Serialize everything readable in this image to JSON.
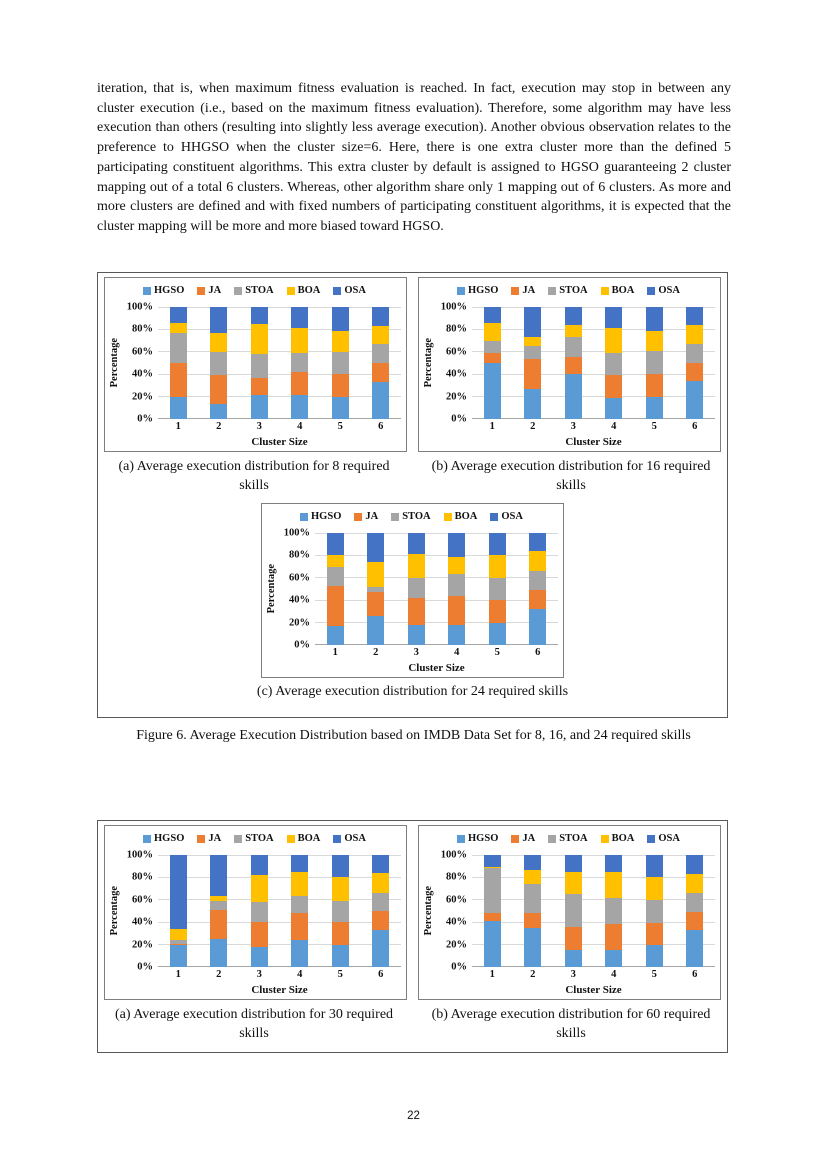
{
  "page": {
    "paragraph": "iteration, that is, when maximum fitness evaluation is reached. In fact, execution may stop in between any cluster execution (i.e., based on the maximum fitness evaluation). Therefore, some algorithm may have less execution than others (resulting into slightly less average execution). Another obvious observation relates to the preference to HHGSO when the cluster size=6. Here, there is one extra cluster more than the defined 5 participating constituent algorithms. This extra cluster by default is assigned to HGSO guaranteeing 2 cluster mapping out of a total 6 clusters. Whereas, other algorithm share only 1 mapping out of 6 clusters. As more and more clusters are defined and with fixed numbers of participating constituent algorithms, it is expected that the cluster mapping will be more and more biased toward HGSO.",
    "page_number": "22"
  },
  "figure6": {
    "caption_a": "(a) Average execution distribution for 8 required skills",
    "caption_b": "(b) Average execution distribution for 16 required skills",
    "caption_c": "(c) Average execution distribution for 24 required skills",
    "caption_main": "Figure 6. Average Execution Distribution based on IMDB Data Set for 8, 16, and 24 required skills"
  },
  "figure7": {
    "caption_a": "(a) Average execution distribution for 30 required skills",
    "caption_b": "(b) Average execution distribution for 60 required skills"
  },
  "colors": {
    "HGSO": "#5B9BD5",
    "JA": "#ED7D31",
    "STOA": "#A5A5A5",
    "BOA": "#FFC000",
    "OSA": "#4472C4",
    "gridline": "#D9D9D9",
    "axis": "#A6A6A6"
  },
  "chart_data": [
    {
      "type": "bar",
      "stacked": true,
      "title": "Average execution distribution for 8 required skills",
      "categories": [
        "1",
        "2",
        "3",
        "4",
        "5",
        "6"
      ],
      "series": [
        {
          "name": "HGSO",
          "color": "#5B9BD5",
          "values": [
            20,
            13,
            21,
            21,
            20,
            33
          ]
        },
        {
          "name": "JA",
          "color": "#ED7D31",
          "values": [
            30,
            26,
            16,
            21,
            20,
            17
          ]
        },
        {
          "name": "STOA",
          "color": "#A5A5A5",
          "values": [
            27,
            21,
            21,
            17,
            20,
            17
          ]
        },
        {
          "name": "BOA",
          "color": "#FFC000",
          "values": [
            9,
            17,
            27,
            22,
            19,
            16
          ]
        },
        {
          "name": "OSA",
          "color": "#4472C4",
          "values": [
            14,
            23,
            15,
            19,
            21,
            17
          ]
        }
      ],
      "xlabel": "Cluster Size",
      "ylabel": "Percentage",
      "yticks": [
        "0%",
        "20%",
        "40%",
        "60%",
        "80%",
        "100%"
      ],
      "ylim": [
        0,
        100
      ],
      "grid": true,
      "legend_position": "top"
    },
    {
      "type": "bar",
      "stacked": true,
      "title": "Average execution distribution for 16 required skills",
      "categories": [
        "1",
        "2",
        "3",
        "4",
        "5",
        "6"
      ],
      "series": [
        {
          "name": "HGSO",
          "color": "#5B9BD5",
          "values": [
            50,
            27,
            40,
            19,
            20,
            34
          ]
        },
        {
          "name": "JA",
          "color": "#ED7D31",
          "values": [
            9,
            27,
            15,
            20,
            20,
            16
          ]
        },
        {
          "name": "STOA",
          "color": "#A5A5A5",
          "values": [
            11,
            11,
            18,
            20,
            21,
            17
          ]
        },
        {
          "name": "BOA",
          "color": "#FFC000",
          "values": [
            16,
            8,
            11,
            22,
            18,
            17
          ]
        },
        {
          "name": "OSA",
          "color": "#4472C4",
          "values": [
            14,
            27,
            16,
            19,
            21,
            16
          ]
        }
      ],
      "xlabel": "Cluster Size",
      "ylabel": "Percentage",
      "yticks": [
        "0%",
        "20%",
        "40%",
        "60%",
        "80%",
        "100%"
      ],
      "ylim": [
        0,
        100
      ],
      "grid": true,
      "legend_position": "top"
    },
    {
      "type": "bar",
      "stacked": true,
      "title": "Average execution distribution for 24 required skills",
      "categories": [
        "1",
        "2",
        "3",
        "4",
        "5",
        "6"
      ],
      "series": [
        {
          "name": "HGSO",
          "color": "#5B9BD5",
          "values": [
            17,
            26,
            18,
            18,
            20,
            32
          ]
        },
        {
          "name": "JA",
          "color": "#ED7D31",
          "values": [
            36,
            21,
            24,
            26,
            20,
            17
          ]
        },
        {
          "name": "STOA",
          "color": "#A5A5A5",
          "values": [
            17,
            5,
            18,
            19,
            20,
            17
          ]
        },
        {
          "name": "BOA",
          "color": "#FFC000",
          "values": [
            10,
            22,
            21,
            16,
            20,
            18
          ]
        },
        {
          "name": "OSA",
          "color": "#4472C4",
          "values": [
            20,
            26,
            19,
            21,
            20,
            16
          ]
        }
      ],
      "xlabel": "Cluster Size",
      "ylabel": "Percentage",
      "yticks": [
        "0%",
        "20%",
        "40%",
        "60%",
        "80%",
        "100%"
      ],
      "ylim": [
        0,
        100
      ],
      "grid": true,
      "legend_position": "top"
    },
    {
      "type": "bar",
      "stacked": true,
      "title": "Average execution distribution for 30 required skills",
      "categories": [
        "1",
        "2",
        "3",
        "4",
        "5",
        "6"
      ],
      "series": [
        {
          "name": "HGSO",
          "color": "#5B9BD5",
          "values": [
            20,
            25,
            18,
            24,
            20,
            33
          ]
        },
        {
          "name": "JA",
          "color": "#ED7D31",
          "values": [
            1,
            26,
            22,
            24,
            20,
            17
          ]
        },
        {
          "name": "STOA",
          "color": "#A5A5A5",
          "values": [
            3,
            8,
            18,
            15,
            19,
            16
          ]
        },
        {
          "name": "BOA",
          "color": "#FFC000",
          "values": [
            10,
            4,
            24,
            22,
            21,
            18
          ]
        },
        {
          "name": "OSA",
          "color": "#4472C4",
          "values": [
            66,
            37,
            18,
            15,
            20,
            16
          ]
        }
      ],
      "xlabel": "Cluster Size",
      "ylabel": "Percentage",
      "yticks": [
        "0%",
        "20%",
        "40%",
        "60%",
        "80%",
        "100%"
      ],
      "ylim": [
        0,
        100
      ],
      "grid": true,
      "legend_position": "top"
    },
    {
      "type": "bar",
      "stacked": true,
      "title": "Average execution distribution for 60 required skills",
      "categories": [
        "1",
        "2",
        "3",
        "4",
        "5",
        "6"
      ],
      "series": [
        {
          "name": "HGSO",
          "color": "#5B9BD5",
          "values": [
            41,
            35,
            15,
            15,
            20,
            33
          ]
        },
        {
          "name": "JA",
          "color": "#ED7D31",
          "values": [
            7,
            13,
            21,
            23,
            19,
            16
          ]
        },
        {
          "name": "STOA",
          "color": "#A5A5A5",
          "values": [
            40,
            26,
            29,
            24,
            21,
            17
          ]
        },
        {
          "name": "BOA",
          "color": "#FFC000",
          "values": [
            1,
            13,
            20,
            23,
            20,
            17
          ]
        },
        {
          "name": "OSA",
          "color": "#4472C4",
          "values": [
            11,
            13,
            15,
            15,
            20,
            17
          ]
        }
      ],
      "xlabel": "Cluster Size",
      "ylabel": "Percentage",
      "yticks": [
        "0%",
        "20%",
        "40%",
        "60%",
        "80%",
        "100%"
      ],
      "ylim": [
        0,
        100
      ],
      "grid": true,
      "legend_position": "top"
    }
  ]
}
